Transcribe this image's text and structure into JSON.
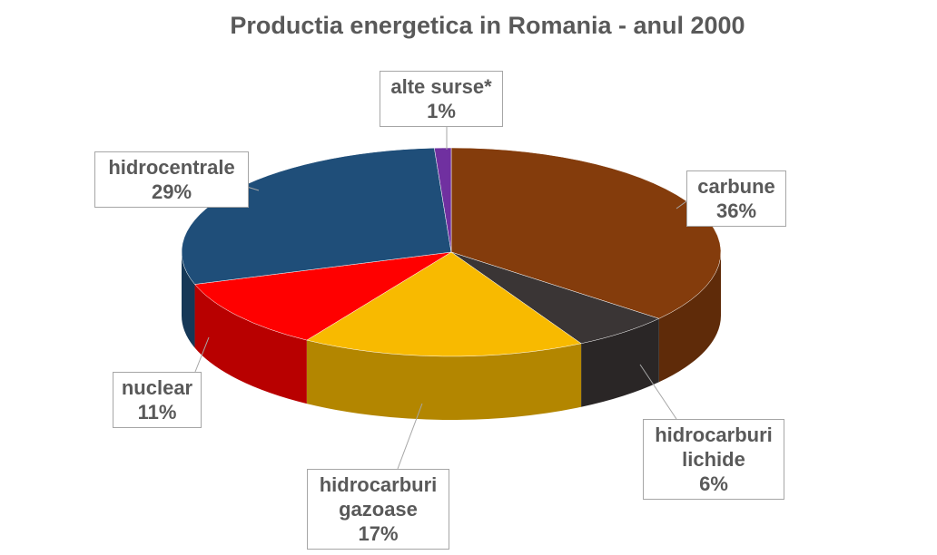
{
  "chart_data": {
    "type": "pie",
    "title": "Productia energetica in Romania - anul 2000",
    "categories": [
      "carbune",
      "hidrocarburi lichide",
      "hidrocarburi gazoase",
      "nuclear",
      "hidrocentrale",
      "alte surse*"
    ],
    "values": [
      36,
      6,
      17,
      11,
      29,
      1
    ],
    "value_labels": [
      "36%",
      "6%",
      "17%",
      "11%",
      "29%",
      "1%"
    ],
    "colors": [
      "#843c0c",
      "#3a3535",
      "#f8ba00",
      "#ff0000",
      "#1f4e79",
      "#7030a0"
    ]
  }
}
